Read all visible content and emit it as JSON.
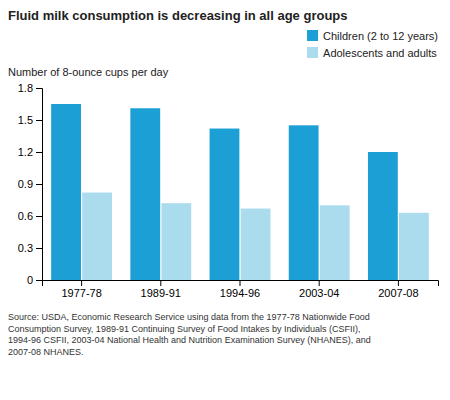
{
  "chart_data": {
    "type": "bar",
    "title": "Fluid milk consumption is decreasing in all age groups",
    "ylabel": "Number of 8-ounce cups per day",
    "categories": [
      "1977-78",
      "1989-91",
      "1994-96",
      "2003-04",
      "2007-08"
    ],
    "series": [
      {
        "name": "Children (2 to 12 years)",
        "color": "#1b9fd4",
        "values": [
          1.65,
          1.61,
          1.42,
          1.45,
          1.2
        ]
      },
      {
        "name": "Adolescents and adults",
        "color": "#aadcee",
        "values": [
          0.82,
          0.72,
          0.67,
          0.7,
          0.63
        ]
      }
    ],
    "ylim": [
      0,
      1.8
    ],
    "yticks": [
      0,
      0.3,
      0.6,
      0.9,
      1.2,
      1.5,
      1.8
    ],
    "grid": false,
    "legend": "upper right",
    "annotations": [
      "Source: USDA, Economic Research Service using data from the 1977-78 Nationwide Food\nConsumption Survey, 1989-91 Continuing Survey of Food Intakes by Individuals (CSFII),\n1994-96 CSFII, 2003-04 National Health and Nutrition Examination Survey (NHANES), and\n2007-08 NHANES."
    ]
  }
}
